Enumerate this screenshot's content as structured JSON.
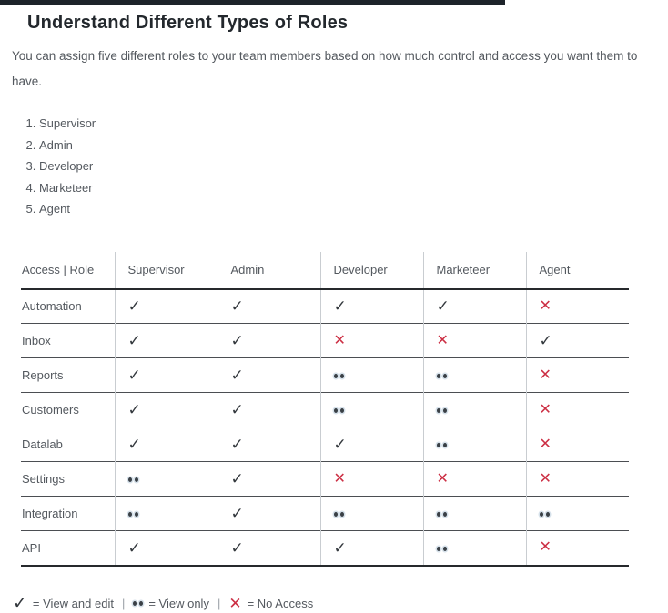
{
  "accent_bar_color": "#1d232a",
  "header": {
    "title": "Understand Different Types of Roles",
    "description": "You can assign five different roles to your team members based on how much control and access you want them to have."
  },
  "roles_list": [
    "Supervisor",
    "Admin",
    "Developer",
    "Marketeer",
    "Agent"
  ],
  "table": {
    "columns": [
      "Access | Role",
      "Supervisor",
      "Admin",
      "Developer",
      "Marketeer",
      "Agent"
    ],
    "rows": [
      {
        "feature": "Automation",
        "access": [
          "edit",
          "edit",
          "edit",
          "edit",
          "none"
        ]
      },
      {
        "feature": "Inbox",
        "access": [
          "edit",
          "edit",
          "none",
          "none",
          "edit"
        ]
      },
      {
        "feature": "Reports",
        "access": [
          "edit",
          "edit",
          "view",
          "view",
          "none"
        ]
      },
      {
        "feature": "Customers",
        "access": [
          "edit",
          "edit",
          "view",
          "view",
          "none"
        ]
      },
      {
        "feature": "Datalab",
        "access": [
          "edit",
          "edit",
          "edit",
          "view",
          "none"
        ]
      },
      {
        "feature": "Settings",
        "access": [
          "view",
          "edit",
          "none",
          "none",
          "none"
        ]
      },
      {
        "feature": "Integration",
        "access": [
          "view",
          "edit",
          "view",
          "view",
          "view"
        ]
      },
      {
        "feature": "API",
        "access": [
          "edit",
          "edit",
          "edit",
          "view",
          "none"
        ]
      }
    ]
  },
  "symbols": {
    "edit": {
      "glyph": "✓",
      "color": "#33383d",
      "meaning": "View and edit"
    },
    "view": {
      "glyph": "••",
      "color": "#3a4046",
      "meaning": "View only"
    },
    "none": {
      "glyph": "✕",
      "color": "#cc2f44",
      "meaning": "No Access"
    }
  },
  "legend": {
    "edit_label": "= View and edit",
    "view_label": "= View only",
    "none_label": "= No Access",
    "separator": "|"
  }
}
